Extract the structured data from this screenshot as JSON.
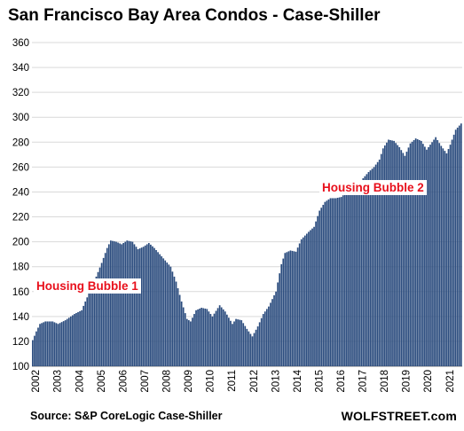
{
  "chart_data": {
    "type": "bar",
    "title": "San Francisco Bay Area Condos - Case-Shiller",
    "xlabel": "",
    "ylabel": "",
    "ylim": [
      100,
      360
    ],
    "yticks": [
      100,
      120,
      140,
      160,
      180,
      200,
      220,
      240,
      260,
      280,
      300,
      320,
      340,
      360
    ],
    "grid": true,
    "bar_color": "#2b4c7e",
    "grid_color": "#d9d9d9",
    "x_start": "2002-01",
    "x_end": "2021-09",
    "x_tick_labels": [
      "2002",
      "2003",
      "2004",
      "2005",
      "2006",
      "2007",
      "2008",
      "2009",
      "2010",
      "2011",
      "2012",
      "2013",
      "2014",
      "2015",
      "2016",
      "2017",
      "2018",
      "2019",
      "2020",
      "2021"
    ],
    "keypoints": [
      [
        "2002-01",
        121
      ],
      [
        "2002-03",
        128
      ],
      [
        "2002-05",
        134
      ],
      [
        "2002-08",
        136
      ],
      [
        "2002-12",
        136
      ],
      [
        "2003-03",
        134
      ],
      [
        "2003-07",
        137
      ],
      [
        "2003-12",
        142
      ],
      [
        "2004-04",
        145
      ],
      [
        "2004-06",
        152
      ],
      [
        "2004-09",
        162
      ],
      [
        "2004-12",
        172
      ],
      [
        "2005-03",
        183
      ],
      [
        "2005-06",
        195
      ],
      [
        "2005-08",
        201
      ],
      [
        "2005-11",
        200
      ],
      [
        "2006-02",
        198
      ],
      [
        "2006-05",
        201
      ],
      [
        "2006-08",
        200
      ],
      [
        "2006-11",
        194
      ],
      [
        "2007-02",
        196
      ],
      [
        "2007-05",
        199
      ],
      [
        "2007-08",
        195
      ],
      [
        "2007-11",
        190
      ],
      [
        "2008-02",
        185
      ],
      [
        "2008-05",
        180
      ],
      [
        "2008-08",
        168
      ],
      [
        "2008-11",
        152
      ],
      [
        "2009-02",
        138
      ],
      [
        "2009-04",
        136
      ],
      [
        "2009-07",
        145
      ],
      [
        "2009-10",
        147
      ],
      [
        "2010-01",
        146
      ],
      [
        "2010-04",
        140
      ],
      [
        "2010-08",
        149
      ],
      [
        "2010-11",
        144
      ],
      [
        "2011-03",
        134
      ],
      [
        "2011-05",
        138
      ],
      [
        "2011-08",
        137
      ],
      [
        "2011-11",
        130
      ],
      [
        "2012-02",
        124
      ],
      [
        "2012-05",
        132
      ],
      [
        "2012-08",
        142
      ],
      [
        "2012-11",
        148
      ],
      [
        "2013-03",
        160
      ],
      [
        "2013-06",
        182
      ],
      [
        "2013-08",
        191
      ],
      [
        "2013-11",
        193
      ],
      [
        "2014-02",
        192
      ],
      [
        "2014-05",
        202
      ],
      [
        "2014-09",
        208
      ],
      [
        "2014-12",
        212
      ],
      [
        "2015-03",
        225
      ],
      [
        "2015-06",
        232
      ],
      [
        "2015-09",
        235
      ],
      [
        "2015-12",
        235
      ],
      [
        "2016-03",
        236
      ],
      [
        "2016-06",
        240
      ],
      [
        "2016-09",
        242
      ],
      [
        "2016-12",
        244
      ],
      [
        "2017-03",
        251
      ],
      [
        "2017-06",
        256
      ],
      [
        "2017-09",
        260
      ],
      [
        "2017-12",
        266
      ],
      [
        "2018-02",
        275
      ],
      [
        "2018-05",
        282
      ],
      [
        "2018-08",
        281
      ],
      [
        "2018-11",
        276
      ],
      [
        "2019-02",
        269
      ],
      [
        "2019-05",
        279
      ],
      [
        "2019-08",
        283
      ],
      [
        "2019-11",
        281
      ],
      [
        "2020-02",
        274
      ],
      [
        "2020-05",
        280
      ],
      [
        "2020-07",
        284
      ],
      [
        "2020-10",
        277
      ],
      [
        "2021-01",
        271
      ],
      [
        "2021-03",
        278
      ],
      [
        "2021-06",
        290
      ],
      [
        "2021-09",
        295
      ]
    ],
    "annotations": [
      {
        "text": "Housing Bubble 1"
      },
      {
        "text": "Housing Bubble 2"
      }
    ]
  },
  "footer": {
    "source": "Source: S&P CoreLogic Case-Shiller",
    "brand": "WOLFSTREET.com"
  }
}
